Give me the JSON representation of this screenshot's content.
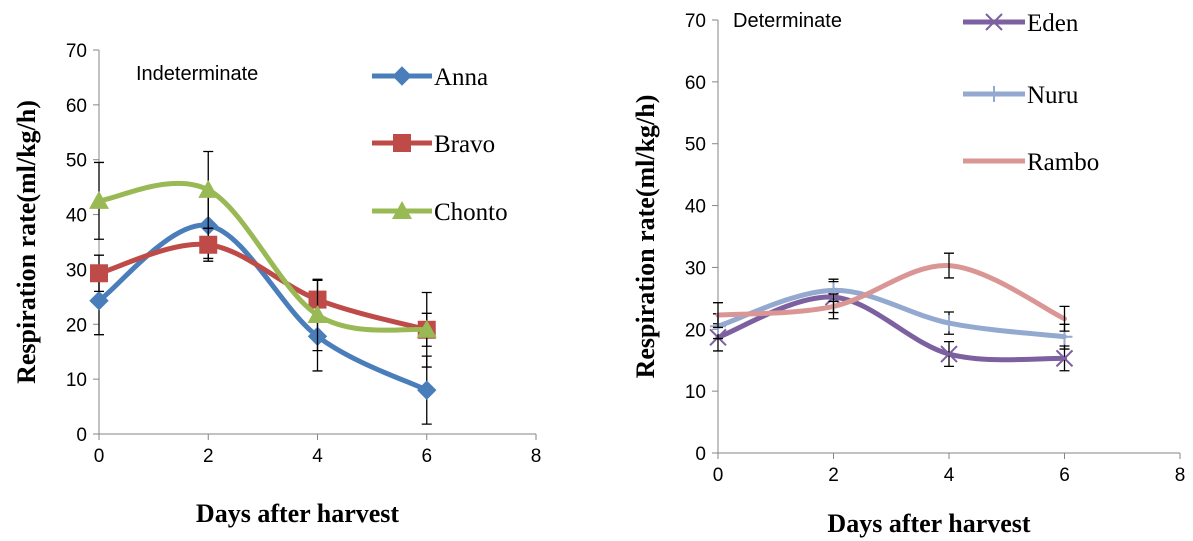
{
  "chart_data": [
    {
      "type": "line",
      "annotation": "Indeterminate",
      "xlabel": "Days after harvest",
      "ylabel": "Respiration rate(ml/kg/h)",
      "xlim": [
        0,
        8
      ],
      "ylim": [
        0,
        70
      ],
      "xticks": [
        0,
        2,
        4,
        6,
        8
      ],
      "yticks": [
        0,
        10,
        20,
        30,
        40,
        50,
        60,
        70
      ],
      "grid": false,
      "legend_position": "top-right",
      "x": [
        0,
        2,
        4,
        6
      ],
      "series": [
        {
          "name": "Anna",
          "values": [
            24.3,
            38.0,
            17.8,
            8.0
          ],
          "error": [
            6.2,
            6.0,
            6.3,
            6.2
          ],
          "color": "#4a7ebb",
          "marker": "diamond"
        },
        {
          "name": "Bravo",
          "values": [
            29.3,
            34.5,
            24.5,
            19.0
          ],
          "error": [
            3.3,
            3.0,
            3.5,
            3.0
          ],
          "color": "#be4b48",
          "marker": "square"
        },
        {
          "name": "Chonto",
          "values": [
            42.5,
            44.5,
            21.7,
            19.0
          ],
          "error": [
            7.0,
            7.0,
            6.5,
            6.8
          ],
          "color": "#98b954",
          "marker": "triangle"
        }
      ]
    },
    {
      "type": "line",
      "annotation": "Determinate",
      "xlabel": "Days after harvest",
      "ylabel": "Respiration rate(ml/kg/h)",
      "xlim": [
        0,
        8
      ],
      "ylim": [
        0,
        70
      ],
      "xticks": [
        0,
        2,
        4,
        6,
        8
      ],
      "yticks": [
        0,
        10,
        20,
        30,
        40,
        50,
        60,
        70
      ],
      "grid": false,
      "legend_position": "top-right",
      "x": [
        0,
        2,
        4,
        6
      ],
      "series": [
        {
          "name": "Eden",
          "values": [
            18.7,
            25.2,
            16.0,
            15.3
          ],
          "error": [
            2.2,
            2.5,
            2.0,
            2.0
          ],
          "color": "#7d60a0",
          "marker": "x"
        },
        {
          "name": "Nuru",
          "values": [
            20.5,
            26.3,
            21.0,
            18.8
          ],
          "error": [
            2.0,
            1.8,
            1.8,
            2.0
          ],
          "color": "#93a9cf",
          "marker": "plus"
        },
        {
          "name": "Rambo",
          "values": [
            22.3,
            23.7,
            30.3,
            21.7
          ],
          "error": [
            2.0,
            2.0,
            2.0,
            2.0
          ],
          "color": "#d99694",
          "marker": "none"
        }
      ]
    }
  ]
}
